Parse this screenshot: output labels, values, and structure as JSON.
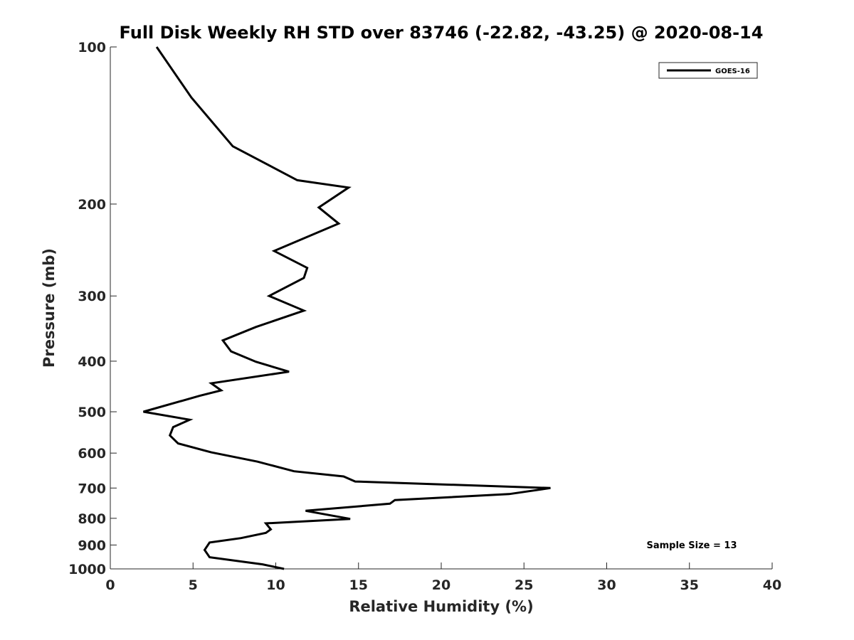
{
  "chart_data": {
    "type": "line",
    "title": "Full Disk Weekly RH STD over 83746 (-22.82, -43.25) @ 2020-08-14",
    "xlabel": "Relative Humidity (%)",
    "ylabel": "Pressure (mb)",
    "xlim": [
      0,
      40
    ],
    "ylim": [
      1000,
      100
    ],
    "yscale": "log",
    "y_reversed": true,
    "xticks": [
      0,
      5,
      10,
      15,
      20,
      25,
      30,
      35,
      40
    ],
    "yticks": [
      100,
      200,
      300,
      400,
      500,
      600,
      700,
      800,
      900,
      1000
    ],
    "grid": false,
    "legend": {
      "position": "top-right",
      "entries": [
        "GOES-16"
      ]
    },
    "annotation": "Sample Size = 13",
    "series": [
      {
        "name": "GOES-16",
        "color": "#000000",
        "points": [
          [
            2.8,
            100
          ],
          [
            4.9,
            125
          ],
          [
            7.4,
            155
          ],
          [
            11.3,
            180
          ],
          [
            14.4,
            186
          ],
          [
            12.6,
            203
          ],
          [
            13.8,
            218
          ],
          [
            9.9,
            246
          ],
          [
            11.9,
            265
          ],
          [
            11.7,
            277
          ],
          [
            9.6,
            300
          ],
          [
            11.7,
            320
          ],
          [
            8.8,
            344
          ],
          [
            6.8,
            365
          ],
          [
            7.3,
            383
          ],
          [
            8.8,
            401
          ],
          [
            10.8,
            419
          ],
          [
            6.1,
            441
          ],
          [
            6.7,
            455
          ],
          [
            5.4,
            466
          ],
          [
            2.0,
            500
          ],
          [
            4.8,
            518
          ],
          [
            3.8,
            535
          ],
          [
            3.6,
            555
          ],
          [
            4.1,
            575
          ],
          [
            6.1,
            598
          ],
          [
            8.9,
            623
          ],
          [
            11.1,
            650
          ],
          [
            14.1,
            665
          ],
          [
            14.8,
            680
          ],
          [
            26.6,
            700
          ],
          [
            24.1,
            719
          ],
          [
            17.2,
            738
          ],
          [
            16.9,
            750
          ],
          [
            11.8,
            774
          ],
          [
            14.5,
            802
          ],
          [
            9.4,
            818
          ],
          [
            9.7,
            840
          ],
          [
            9.4,
            853
          ],
          [
            7.9,
            873
          ],
          [
            6.0,
            890
          ],
          [
            5.7,
            920
          ],
          [
            6.0,
            950
          ],
          [
            9.2,
            980
          ],
          [
            10.5,
            1000
          ]
        ]
      }
    ]
  }
}
